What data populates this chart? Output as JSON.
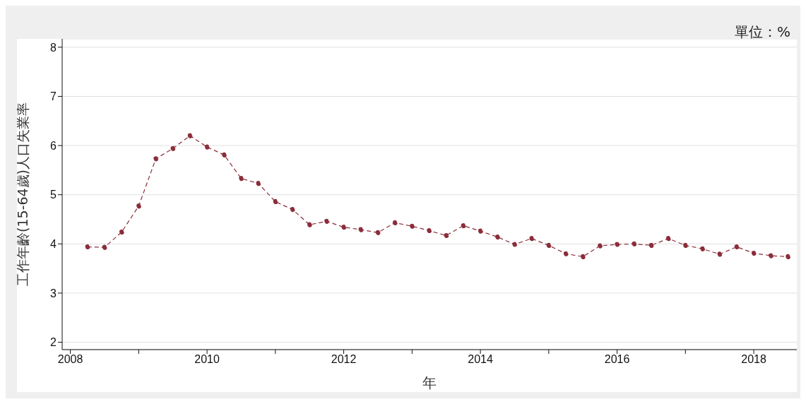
{
  "chart_data": {
    "type": "line",
    "xlabel": "年",
    "ylabel": "工作年齡(15-64歲)人口失業率",
    "annotations": [
      "單位：%"
    ],
    "x": [
      2008.25,
      2008.5,
      2008.75,
      2009,
      2009.25,
      2009.5,
      2009.75,
      2010,
      2010.25,
      2010.5,
      2010.75,
      2011,
      2011.25,
      2011.5,
      2011.75,
      2012,
      2012.25,
      2012.5,
      2012.75,
      2013,
      2013.25,
      2013.5,
      2013.75,
      2014,
      2014.25,
      2014.5,
      2014.75,
      2015,
      2015.25,
      2015.5,
      2015.75,
      2016,
      2016.25,
      2016.5,
      2016.75,
      2017,
      2017.25,
      2017.5,
      2017.75,
      2018,
      2018.25,
      2018.5
    ],
    "series": [
      {
        "color": "#8b2e3a",
        "values": [
          3.94,
          3.93,
          4.24,
          4.77,
          5.73,
          5.94,
          6.2,
          5.97,
          5.81,
          5.33,
          5.23,
          4.86,
          4.7,
          4.39,
          4.46,
          4.34,
          4.29,
          4.23,
          4.43,
          4.36,
          4.27,
          4.17,
          4.37,
          4.26,
          4.14,
          3.99,
          4.11,
          3.97,
          3.8,
          3.74,
          3.96,
          3.99,
          4.0,
          3.97,
          4.11,
          3.97,
          3.9,
          3.79,
          3.94,
          3.81,
          3.76,
          3.74
        ]
      }
    ],
    "xlim": [
      2007.88,
      2018.63
    ],
    "xticks": [
      2008,
      {
        "value": 2009,
        "label": null
      },
      2010,
      {
        "value": 2011,
        "label": null
      },
      2012,
      {
        "value": 2013,
        "label": null
      },
      2014,
      {
        "value": 2015,
        "label": null
      },
      2016,
      {
        "value": 2017,
        "label": null
      },
      2018
    ],
    "ylim": [
      1.85,
      8.17
    ],
    "yticks": [
      2,
      3,
      4,
      5,
      6,
      7,
      8
    ],
    "grid": "y",
    "marker": "circle",
    "line_style": "dashed"
  }
}
